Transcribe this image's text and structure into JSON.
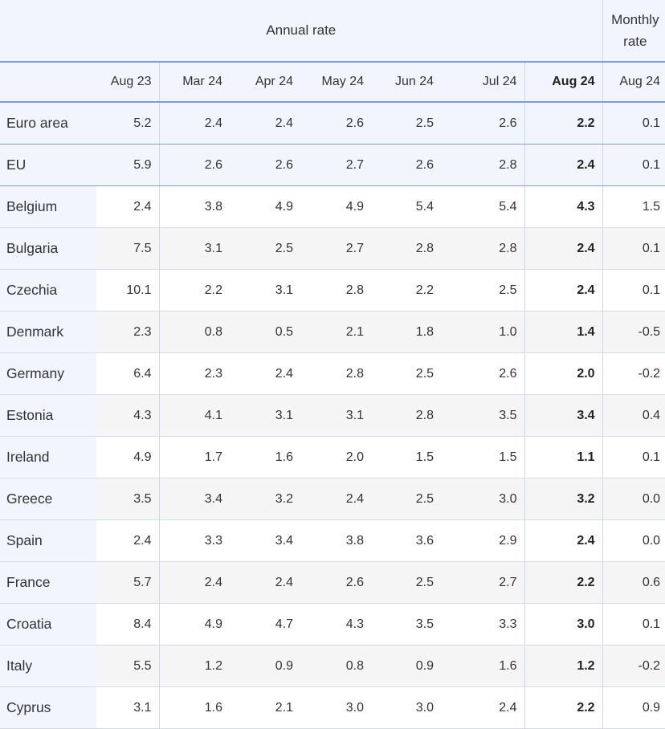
{
  "header": {
    "annual_rate": "Annual rate",
    "monthly_rate_line1": "Monthly",
    "monthly_rate_line2": "rate",
    "columns": [
      "",
      "Aug 23",
      "Mar 24",
      "Apr 24",
      "May 24",
      "Jun 24",
      "Jul 24",
      "Aug 24",
      "Aug 24"
    ]
  },
  "rows": [
    {
      "country": "Euro area",
      "values": [
        "5.2",
        "2.4",
        "2.4",
        "2.6",
        "2.5",
        "2.6",
        "2.2",
        "0.1"
      ]
    },
    {
      "country": "EU",
      "values": [
        "5.9",
        "2.6",
        "2.6",
        "2.7",
        "2.6",
        "2.8",
        "2.4",
        "0.1"
      ]
    },
    {
      "country": "Belgium",
      "values": [
        "2.4",
        "3.8",
        "4.9",
        "4.9",
        "5.4",
        "5.4",
        "4.3",
        "1.5"
      ]
    },
    {
      "country": "Bulgaria",
      "values": [
        "7.5",
        "3.1",
        "2.5",
        "2.7",
        "2.8",
        "2.8",
        "2.4",
        "0.1"
      ]
    },
    {
      "country": "Czechia",
      "values": [
        "10.1",
        "2.2",
        "3.1",
        "2.8",
        "2.2",
        "2.5",
        "2.4",
        "0.1"
      ]
    },
    {
      "country": "Denmark",
      "values": [
        "2.3",
        "0.8",
        "0.5",
        "2.1",
        "1.8",
        "1.0",
        "1.4",
        "-0.5"
      ]
    },
    {
      "country": "Germany",
      "values": [
        "6.4",
        "2.3",
        "2.4",
        "2.8",
        "2.5",
        "2.6",
        "2.0",
        "-0.2"
      ]
    },
    {
      "country": "Estonia",
      "values": [
        "4.3",
        "4.1",
        "3.1",
        "3.1",
        "2.8",
        "3.5",
        "3.4",
        "0.4"
      ]
    },
    {
      "country": "Ireland",
      "values": [
        "4.9",
        "1.7",
        "1.6",
        "2.0",
        "1.5",
        "1.5",
        "1.1",
        "0.1"
      ]
    },
    {
      "country": "Greece",
      "values": [
        "3.5",
        "3.4",
        "3.2",
        "2.4",
        "2.5",
        "3.0",
        "3.2",
        "0.0"
      ]
    },
    {
      "country": "Spain",
      "values": [
        "2.4",
        "3.3",
        "3.4",
        "3.8",
        "3.6",
        "2.9",
        "2.4",
        "0.0"
      ]
    },
    {
      "country": "France",
      "values": [
        "5.7",
        "2.4",
        "2.4",
        "2.6",
        "2.5",
        "2.7",
        "2.2",
        "0.6"
      ]
    },
    {
      "country": "Croatia",
      "values": [
        "8.4",
        "4.9",
        "4.7",
        "4.3",
        "3.5",
        "3.3",
        "3.0",
        "0.1"
      ]
    },
    {
      "country": "Italy",
      "values": [
        "5.5",
        "1.2",
        "0.9",
        "0.8",
        "0.9",
        "1.6",
        "1.2",
        "-0.2"
      ]
    },
    {
      "country": "Cyprus",
      "values": [
        "3.1",
        "1.6",
        "2.1",
        "3.0",
        "3.0",
        "2.4",
        "2.2",
        "0.9"
      ]
    }
  ]
}
